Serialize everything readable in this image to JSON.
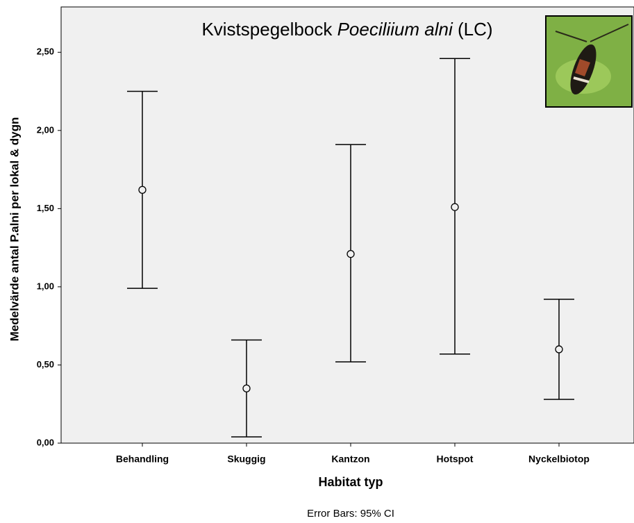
{
  "chart_data": {
    "type": "errorbar",
    "title": {
      "text": "Kvistspegelbock",
      "species": "Poeciliium alni",
      "status": "(LC)"
    },
    "x_label": "Habitat typ",
    "y_label": "Medelvärde antal P.alni per lokal & dygn",
    "footnote": "Error Bars: 95% CI",
    "categories": [
      "Behandling",
      "Skuggig",
      "Kantzon",
      "Hotspot",
      "Nyckelbiotop"
    ],
    "values": [
      1.62,
      0.35,
      1.21,
      1.51,
      0.6
    ],
    "ci_lower": [
      0.99,
      0.04,
      0.52,
      0.57,
      0.28
    ],
    "ci_upper": [
      2.25,
      0.66,
      1.91,
      2.46,
      0.92
    ],
    "color": "#000000",
    "ylim": [
      0,
      2.79
    ],
    "yticks": [
      {
        "value": 0,
        "label": "0,00"
      },
      {
        "value": 0.5,
        "label": "0,50"
      },
      {
        "value": 1,
        "label": "1,00"
      },
      {
        "value": 1.5,
        "label": "1,50"
      },
      {
        "value": 2,
        "label": "2,00"
      },
      {
        "value": 2.5,
        "label": "2,50"
      }
    ]
  }
}
